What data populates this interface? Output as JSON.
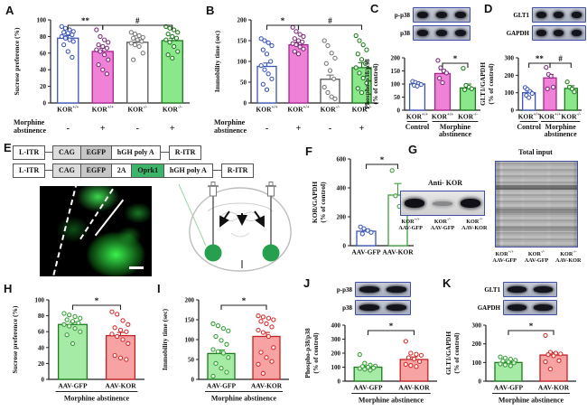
{
  "panels": {
    "A": "A",
    "B": "B",
    "C": "C",
    "D": "D",
    "E": "E",
    "F": "F",
    "G": "G",
    "H": "H",
    "I": "I",
    "J": "J",
    "K": "K"
  },
  "palette": {
    "blue": {
      "fill": "#ffffff",
      "stroke": "#3a55b5",
      "point": "#3a55b5"
    },
    "magenta": {
      "fill": "#ef82d6",
      "stroke": "#a82390",
      "point": "#7c2a7c"
    },
    "white": {
      "fill": "#ffffff",
      "stroke": "#555555",
      "point": "#777777"
    },
    "green": {
      "fill": "#8ae88a",
      "stroke": "#1c7a1c",
      "point": "#1c7a1c"
    },
    "greenOutline": {
      "fill": "#ffffff",
      "stroke": "#3f9e3f",
      "point": "#3f9e3f"
    },
    "green2": {
      "fill": "#a5eba5",
      "stroke": "#1d7a1d",
      "point": "#2f9e2f"
    },
    "red2": {
      "fill": "#f7a3a3",
      "stroke": "#c22222",
      "point": "#d42a2a"
    }
  },
  "chart_data": [
    {
      "id": "A",
      "type": "bar",
      "ylabel": [
        "Sucrose preference (%)"
      ],
      "ylim": [
        0,
        100
      ],
      "yticks": [
        0,
        20,
        40,
        60,
        80,
        100
      ],
      "categories": [
        "KOR+/+",
        "KOR+/+",
        "KOR-/-",
        "KOR-/-"
      ],
      "cat_sups": [
        [
          "KOR",
          "+/+"
        ],
        [
          "KOR",
          "+/+"
        ],
        [
          "KOR",
          "-/-"
        ],
        [
          "KOR",
          "-/-"
        ]
      ],
      "values": [
        78,
        62,
        73,
        75
      ],
      "errors": [
        3,
        4,
        3,
        3
      ],
      "points": [
        [
          92,
          90,
          88,
          86,
          85,
          84,
          82,
          80,
          78,
          76,
          74,
          70,
          62,
          55
        ],
        [
          88,
          80,
          76,
          73,
          70,
          68,
          66,
          64,
          62,
          58,
          52,
          46,
          40,
          35
        ],
        [
          85,
          83,
          81,
          79,
          78,
          76,
          74,
          72,
          70,
          68,
          60,
          52
        ],
        [
          92,
          90,
          88,
          85,
          83,
          80,
          78,
          76,
          73,
          68,
          62,
          58,
          54
        ]
      ],
      "styles": [
        "blue",
        "magenta",
        "white",
        "green"
      ],
      "sig": [
        {
          "a": 0,
          "b": 1,
          "label": "**"
        },
        {
          "a": 1,
          "b": 3,
          "label": "#"
        }
      ],
      "xrow": {
        "label": [
          "Morphine",
          "abstinence"
        ],
        "values": [
          "-",
          "+",
          "-",
          "+"
        ]
      }
    },
    {
      "id": "B",
      "type": "bar",
      "ylabel": [
        "Immobility time (sec)"
      ],
      "ylim": [
        0,
        200
      ],
      "yticks": [
        0,
        50,
        100,
        150,
        200
      ],
      "categories": [
        "KOR+/+",
        "KOR+/+",
        "KOR-/-",
        "KOR-/-"
      ],
      "cat_sups": [
        [
          "KOR",
          "+/+"
        ],
        [
          "KOR",
          "+/+"
        ],
        [
          "KOR",
          "-/-"
        ],
        [
          "KOR",
          "-/-"
        ]
      ],
      "values": [
        88,
        140,
        57,
        85
      ],
      "errors": [
        8,
        6,
        10,
        12
      ],
      "points": [
        [
          155,
          150,
          145,
          138,
          128,
          118,
          100,
          90,
          80,
          70,
          58,
          45,
          32
        ],
        [
          182,
          172,
          165,
          160,
          155,
          150,
          147,
          143,
          140,
          135,
          130,
          124,
          118
        ],
        [
          150,
          138,
          120,
          108,
          95,
          78,
          58,
          38,
          25,
          15,
          10
        ],
        [
          162,
          150,
          140,
          128,
          118,
          105,
          95,
          85,
          72,
          60,
          48,
          35,
          25
        ]
      ],
      "styles": [
        "blue",
        "magenta",
        "white",
        "green"
      ],
      "sig": [
        {
          "a": 0,
          "b": 1,
          "label": "*"
        },
        {
          "a": 1,
          "b": 3,
          "label": "#"
        }
      ],
      "xrow": {
        "label": [
          "Morphine",
          "abstinence"
        ],
        "values": [
          "-",
          "+",
          "-",
          "+"
        ]
      }
    },
    {
      "id": "C",
      "type": "bar",
      "ylabel": [
        "Phospho-p38/p38",
        "(% of control)"
      ],
      "ylim": [
        0,
        200
      ],
      "yticks": [
        0,
        50,
        100,
        150,
        200
      ],
      "categories": [
        "KOR+/+",
        "KOR+/+",
        "KOR-/-"
      ],
      "cat_sups": [
        [
          "KOR",
          "+/+"
        ],
        [
          "KOR",
          "+/+"
        ],
        [
          "KOR",
          "-/-"
        ]
      ],
      "values": [
        100,
        140,
        85
      ],
      "errors": [
        5,
        15,
        15
      ],
      "points": [
        [
          110,
          106,
          102,
          98,
          95,
          92
        ],
        [
          190,
          162,
          150,
          142,
          122,
          105
        ],
        [
          160,
          95,
          88,
          82,
          78
        ]
      ],
      "styles": [
        "blue",
        "magenta",
        "green"
      ],
      "sig": [
        {
          "a": 1,
          "b": 2,
          "label": "*"
        }
      ],
      "groups": [
        {
          "from": 0,
          "to": 0,
          "label": [
            "Control"
          ]
        },
        {
          "from": 1,
          "to": 2,
          "label": [
            "Morphine",
            "abstinence"
          ]
        }
      ]
    },
    {
      "id": "D",
      "type": "bar",
      "ylabel": [
        "GLT1/GAPDH",
        "(% of control)"
      ],
      "ylim": [
        0,
        300
      ],
      "yticks": [
        0,
        100,
        200,
        300
      ],
      "categories": [
        "KOR+/+",
        "KOR+/+",
        "KOR-/-"
      ],
      "cat_sups": [
        [
          "KOR",
          "+/+"
        ],
        [
          "KOR",
          "+/+"
        ],
        [
          "KOR",
          "-/-"
        ]
      ],
      "values": [
        100,
        185,
        125
      ],
      "errors": [
        10,
        20,
        15
      ],
      "points": [
        [
          130,
          120,
          108,
          96,
          85,
          72
        ],
        [
          245,
          205,
          195,
          132,
          122
        ],
        [
          162,
          132,
          122,
          105
        ]
      ],
      "styles": [
        "blue",
        "magenta",
        "green"
      ],
      "sig": [
        {
          "a": 0,
          "b": 1,
          "label": "**"
        },
        {
          "a": 1,
          "b": 2,
          "label": "#"
        }
      ],
      "groups": [
        {
          "from": 0,
          "to": 0,
          "label": [
            "Control"
          ]
        },
        {
          "from": 1,
          "to": 2,
          "label": [
            "Morphine",
            "abstinence"
          ]
        }
      ]
    },
    {
      "id": "F",
      "type": "bar",
      "ylabel": [
        "KOR/GAPDH",
        "(% of control)"
      ],
      "ylim": [
        0,
        600
      ],
      "yticks": [
        0,
        200,
        400,
        600
      ],
      "categories": [
        "AAV-GFP",
        "AAV-KOR"
      ],
      "values": [
        100,
        350
      ],
      "errors": [
        15,
        80
      ],
      "points": [
        [
          130,
          118,
          105,
          92,
          82
        ],
        [
          520,
          345,
          272,
          248
        ]
      ],
      "styles": [
        "blue",
        "greenOutline"
      ],
      "sig": [
        {
          "a": 0,
          "b": 1,
          "label": "*"
        }
      ]
    },
    {
      "id": "H",
      "type": "bar",
      "ylabel": [
        "Sucrose preference (%)"
      ],
      "ylim": [
        0,
        100
      ],
      "yticks": [
        0,
        20,
        40,
        60,
        80,
        100
      ],
      "categories": [
        "AAV-GFP",
        "AAV-KOR"
      ],
      "values": [
        69,
        55
      ],
      "errors": [
        3,
        4
      ],
      "points": [
        [
          83,
          81,
          79,
          77,
          75,
          73,
          71,
          69,
          67,
          64,
          60,
          56,
          45
        ],
        [
          85,
          82,
          74,
          69,
          65,
          62,
          60,
          57,
          54,
          50,
          45,
          30,
          27,
          25
        ]
      ],
      "styles": [
        "green2",
        "red2"
      ],
      "sig": [
        {
          "a": 0,
          "b": 1,
          "label": "*"
        }
      ],
      "span": "Morphine abstinence"
    },
    {
      "id": "I",
      "type": "bar",
      "ylabel": [
        "Immobility time (sec)"
      ],
      "ylim": [
        0,
        200
      ],
      "yticks": [
        0,
        50,
        100,
        150,
        200
      ],
      "categories": [
        "AAV-GFP",
        "AAV-KOR"
      ],
      "values": [
        65,
        108
      ],
      "errors": [
        9,
        10
      ],
      "points": [
        [
          140,
          135,
          128,
          122,
          108,
          98,
          88,
          75,
          70,
          66,
          55,
          40,
          28,
          18,
          8
        ],
        [
          160,
          157,
          154,
          150,
          146,
          140,
          132,
          124,
          118,
          108,
          80,
          68,
          55,
          45,
          38,
          15
        ]
      ],
      "styles": [
        "green2",
        "red2"
      ],
      "sig": [
        {
          "a": 0,
          "b": 1,
          "label": "*"
        }
      ],
      "span": "Morphine abstinence"
    },
    {
      "id": "J",
      "type": "bar",
      "ylabel": [
        "Phospho-p38/p38",
        "(% of control)"
      ],
      "ylim": [
        0,
        400
      ],
      "yticks": [
        0,
        100,
        200,
        300,
        400
      ],
      "categories": [
        "AAV-GFP",
        "AAV-KOR"
      ],
      "values": [
        100,
        155
      ],
      "errors": [
        8,
        18
      ],
      "points": [
        [
          190,
          128,
          115,
          108,
          104,
          100,
          95,
          90,
          85,
          78
        ],
        [
          285,
          200,
          192,
          185,
          168,
          158,
          140,
          120,
          112,
          105
        ]
      ],
      "styles": [
        "green2",
        "red2"
      ],
      "sig": [
        {
          "a": 0,
          "b": 1,
          "label": "*"
        }
      ],
      "span": "Morphine abstinence"
    },
    {
      "id": "K",
      "type": "bar",
      "ylabel": [
        "GLT1/GAPDH",
        "(% of control)"
      ],
      "ylim": [
        0,
        300
      ],
      "yticks": [
        0,
        100,
        200,
        300
      ],
      "categories": [
        "AAV-GFP",
        "AAV-KOR"
      ],
      "values": [
        100,
        140
      ],
      "errors": [
        5,
        12
      ],
      "points": [
        [
          130,
          124,
          118,
          112,
          108,
          103,
          98,
          92,
          87,
          82
        ],
        [
          245,
          155,
          150,
          146,
          142,
          136,
          110,
          104,
          65
        ]
      ],
      "styles": [
        "green2",
        "red2"
      ],
      "sig": [
        {
          "a": 0,
          "b": 1,
          "label": "*"
        }
      ],
      "span": "Morphine abstinence"
    }
  ],
  "blots": {
    "C": {
      "rows": [
        {
          "label": "p-p38",
          "bands": 3
        },
        {
          "label": "p38",
          "bands": 3
        }
      ]
    },
    "D": {
      "rows": [
        {
          "label": "GLT1",
          "bands": 3
        },
        {
          "label": "GAPDH",
          "bands": 3
        }
      ]
    },
    "J": {
      "rows": [
        {
          "label": "p-p38",
          "bands": 2
        },
        {
          "label": "p38",
          "bands": 2
        }
      ]
    },
    "K": {
      "rows": [
        {
          "label": "GLT1",
          "bands": 2
        },
        {
          "label": "GAPDH",
          "bands": 2
        }
      ]
    }
  },
  "construct": {
    "rows": [
      {
        "segments": [
          {
            "t": "L-ITR",
            "type": "itr"
          },
          {
            "t": "CAG",
            "type": "gray"
          },
          {
            "t": "EGFP",
            "type": "gray2"
          },
          {
            "t": "hGH poly A",
            "type": "white"
          },
          {
            "t": "R-ITR",
            "type": "itr"
          }
        ]
      },
      {
        "segments": [
          {
            "t": "L-ITR",
            "type": "itr"
          },
          {
            "t": "CAG",
            "type": "gray"
          },
          {
            "t": "EGFP",
            "type": "gray2"
          },
          {
            "t": "2A",
            "type": "white"
          },
          {
            "t": "Oprk1",
            "type": "green"
          },
          {
            "t": "hGH poly A",
            "type": "white"
          },
          {
            "t": "R-ITR",
            "type": "itr"
          }
        ]
      }
    ]
  },
  "panel_g": {
    "anti_title": "Anti- KOR",
    "total_title": "Total input",
    "lanes_top": [
      [
        "KOR",
        "+/+"
      ],
      [
        "KOR",
        "-/-"
      ],
      [
        "KOR",
        "-/-"
      ]
    ],
    "lanes_bottom": [
      "AAV-GFP",
      "AAV-GFP",
      "AAV-KOR"
    ],
    "band_weights": [
      1,
      0.3,
      1
    ]
  }
}
